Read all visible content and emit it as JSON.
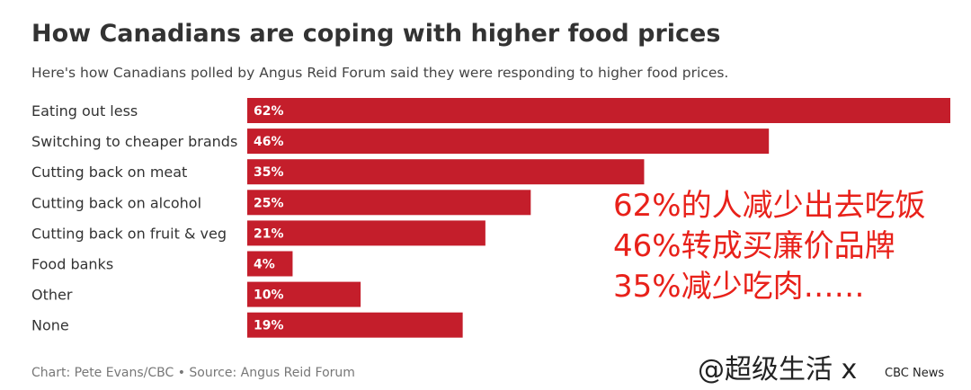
{
  "header": {
    "title": "How Canadians are coping with higher food prices",
    "subtitle": "Here's how Canadians polled by Angus Reid Forum said they were responding to higher food prices."
  },
  "chart_data": {
    "type": "bar",
    "orientation": "horizontal",
    "categories": [
      "Eating out less",
      "Switching to cheaper brands",
      "Cutting back on meat",
      "Cutting back on alcohol",
      "Cutting back on fruit & veg",
      "Food banks",
      "Other",
      "None"
    ],
    "values": [
      62,
      46,
      35,
      25,
      21,
      4,
      10,
      19
    ],
    "data_labels": [
      "62%",
      "46%",
      "35%",
      "25%",
      "21%",
      "4%",
      "10%",
      "19%"
    ],
    "xlim": [
      0,
      62
    ],
    "grid": false,
    "bar_color": "#c41e2b",
    "label_color": "#ffffff"
  },
  "annotation": {
    "lines": [
      "62%的人减少出去吃饭",
      "46%转成买廉价品牌",
      "35%减少吃肉……"
    ],
    "color": "#e8211a"
  },
  "footer": {
    "source": "Chart: Pete Evans/CBC • Source: Angus Reid Forum",
    "watermark": "@超级生活 x",
    "brand": "CBC News"
  }
}
